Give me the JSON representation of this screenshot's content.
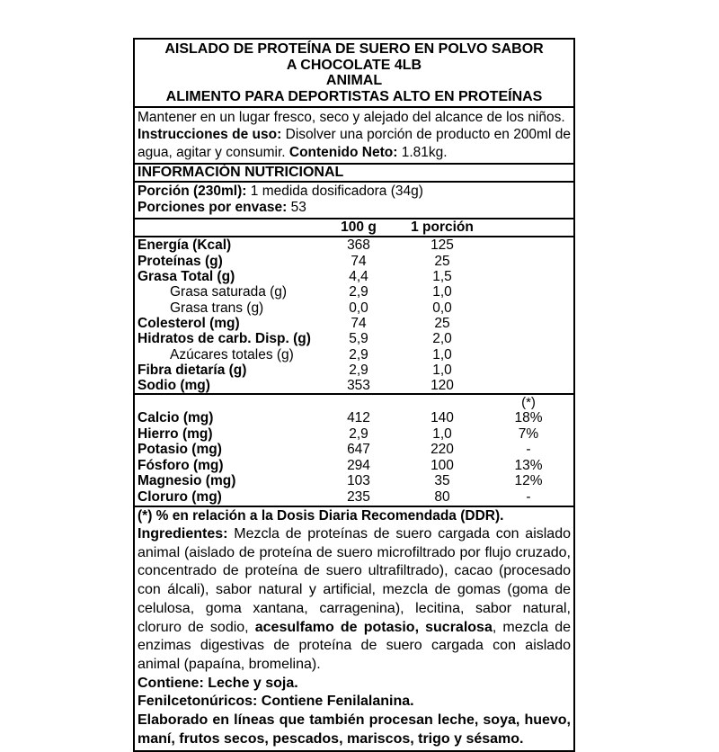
{
  "header": {
    "line1": "AISLADO DE PROTEÍNA DE SUERO EN POLVO SABOR",
    "line2": "A CHOCOLATE 4LB",
    "line3": "ANIMAL",
    "line4": "ALIMENTO PARA DEPORTISTAS ALTO EN PROTEÍNAS"
  },
  "storage": {
    "keep_text": "Mantener en un lugar fresco, seco y alejado del alcance de los niños.",
    "instructions_label": "Instrucciones de uso:",
    "instructions_text": "Disolver una porción de producto en 200ml de agua, agitar y consumir.",
    "net_label": "Contenido Neto:",
    "net_value": "1.81kg."
  },
  "nutrition_heading": "INFORMACIÓN NUTRICIONAL",
  "serving": {
    "portion_label": "Porción (230ml):",
    "portion_value": "1 medida dosificadora (34g)",
    "servings_label": "Porciones por envase:",
    "servings_value": "53"
  },
  "table": {
    "col1": "100 g",
    "col2": "1 porción",
    "col3": "(*)",
    "rows": [
      {
        "label": "Energía (Kcal)",
        "per100": "368",
        "serving": "125"
      },
      {
        "label": "Proteínas (g)",
        "per100": "74",
        "serving": "25"
      },
      {
        "label": "Grasa Total (g)",
        "per100": "4,4",
        "serving": "1,5"
      },
      {
        "label": "Grasa saturada (g)",
        "per100": "2,9",
        "serving": "1,0"
      },
      {
        "label": "Grasa trans (g)",
        "per100": "0,0",
        "serving": "0,0"
      },
      {
        "label": "Colesterol (mg)",
        "per100": "74",
        "serving": "25"
      },
      {
        "label": "Hidratos de carb. Disp. (g)",
        "per100": "5,9",
        "serving": "2,0"
      },
      {
        "label": "Azúcares totales (g)",
        "per100": "2,9",
        "serving": "1,0"
      },
      {
        "label": "Fibra dietaría (g)",
        "per100": "2,9",
        "serving": "1,0"
      },
      {
        "label": "Sodio (mg)",
        "per100": "353",
        "serving": "120"
      }
    ],
    "minerals": [
      {
        "label": "Calcio (mg)",
        "per100": "412",
        "serving": "140",
        "ddr": "18%"
      },
      {
        "label": "Hierro (mg)",
        "per100": "2,9",
        "serving": "1,0",
        "ddr": "7%"
      },
      {
        "label": "Potasio (mg)",
        "per100": "647",
        "serving": "220",
        "ddr": "-"
      },
      {
        "label": "Fósforo (mg)",
        "per100": "294",
        "serving": "100",
        "ddr": "13%"
      },
      {
        "label": "Magnesio (mg)",
        "per100": "103",
        "serving": "35",
        "ddr": "12%"
      },
      {
        "label": "Cloruro (mg)",
        "per100": "235",
        "serving": "80",
        "ddr": "-"
      }
    ]
  },
  "footnote": "(*) % en relación a la Dosis Diaria Recomendada (DDR).",
  "ingredients": {
    "label": "Ingredientes:",
    "part1": "Mezcla de proteínas de suero cargada con aislado animal (aislado de proteína de suero microfiltrado por flujo cruzado, concentrado de proteína de suero ultrafiltrado), cacao (procesado con álcali), sabor natural y artificial, mezcla de gomas (goma de celulosa, goma xantana, carragenina), lecitina, sabor natural, cloruro de sodio,",
    "bold_part": "acesulfamo de potasio, sucralosa",
    "part2": ", mezcla de enzimas digestivas de proteína de suero cargada con aislado animal (papaína, bromelina)."
  },
  "contains": "Contiene: Leche y soja.",
  "phenylketonurics": "Fenilcetonúricos: Contiene Fenilalanina.",
  "allergen_line": "Elaborado en líneas que también procesan leche, soya, huevo, maní, frutos secos, pescados, mariscos, trigo y sésamo."
}
